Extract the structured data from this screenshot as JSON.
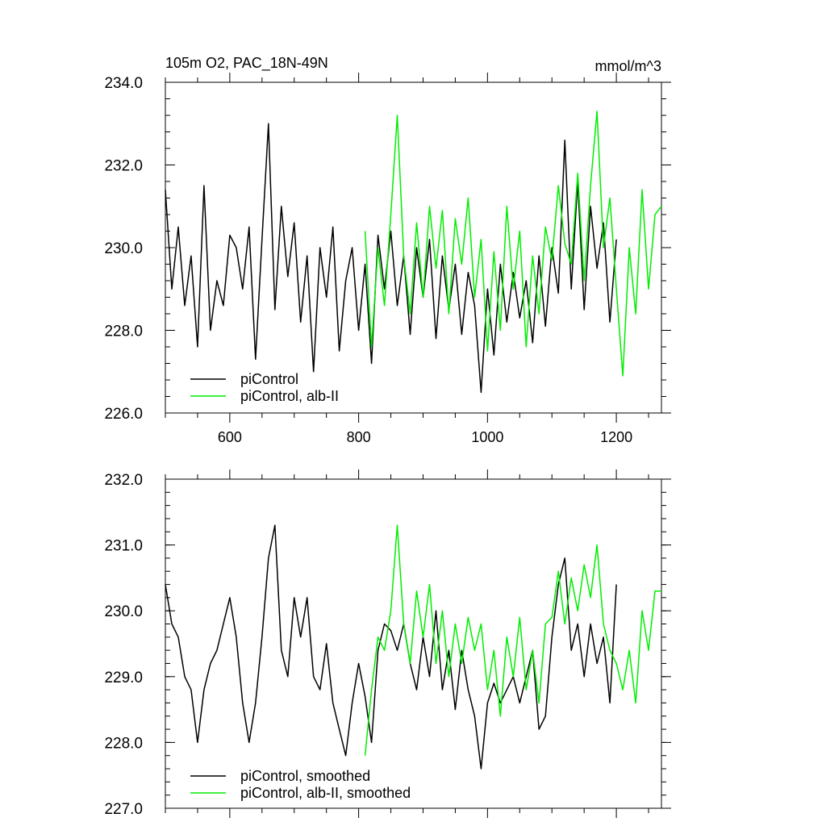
{
  "chart_data": [
    {
      "type": "line",
      "title_left": "105m O2, PAC_18N-49N",
      "title_right": "mmol/m^3",
      "xlim": [
        500,
        1270
      ],
      "ylim": [
        226.0,
        234.0
      ],
      "x_ticks": [
        600,
        800,
        1000,
        1200
      ],
      "x_tick_labels": [
        "600",
        "800",
        "1000",
        "1200"
      ],
      "y_ticks": [
        226.0,
        228.0,
        230.0,
        232.0,
        234.0
      ],
      "y_tick_labels": [
        "226.0",
        "228.0",
        "230.0",
        "232.0",
        "234.0"
      ],
      "legend_position": "bottom-left",
      "series": [
        {
          "name": "piControl",
          "color": "#000000",
          "x": [
            500,
            510,
            520,
            530,
            540,
            550,
            560,
            570,
            580,
            590,
            600,
            610,
            620,
            630,
            640,
            650,
            660,
            670,
            680,
            690,
            700,
            710,
            720,
            730,
            740,
            750,
            760,
            770,
            780,
            790,
            800,
            810,
            820,
            830,
            840,
            850,
            860,
            870,
            880,
            890,
            900,
            910,
            920,
            930,
            940,
            950,
            960,
            970,
            980,
            990,
            1000,
            1010,
            1020,
            1030,
            1040,
            1050,
            1060,
            1070,
            1080,
            1090,
            1100,
            1110,
            1120,
            1130,
            1140,
            1150,
            1160,
            1170,
            1180,
            1190,
            1200
          ],
          "values": [
            231.4,
            229.0,
            230.5,
            228.6,
            229.8,
            227.6,
            231.5,
            228.0,
            229.2,
            228.6,
            230.3,
            230.0,
            229.0,
            230.5,
            227.3,
            230.2,
            233.0,
            228.5,
            231.0,
            229.3,
            230.6,
            228.2,
            229.8,
            227.0,
            230.0,
            228.8,
            230.5,
            227.5,
            229.2,
            230.0,
            228.0,
            229.6,
            227.2,
            230.3,
            229.0,
            230.4,
            228.6,
            229.8,
            227.9,
            230.0,
            228.8,
            230.2,
            227.8,
            229.8,
            228.5,
            229.6,
            227.9,
            229.4,
            228.6,
            226.5,
            229.0,
            227.4,
            229.6,
            228.2,
            229.4,
            228.3,
            229.2,
            227.7,
            229.8,
            228.1,
            230.0,
            228.9,
            232.6,
            229.0,
            231.6,
            228.5,
            231.0,
            229.5,
            230.6,
            228.2,
            230.2
          ]
        },
        {
          "name": "piControl, alb-II",
          "color": "#00ee00",
          "x": [
            810,
            820,
            830,
            840,
            850,
            860,
            870,
            880,
            890,
            900,
            910,
            920,
            930,
            940,
            950,
            960,
            970,
            980,
            990,
            1000,
            1010,
            1020,
            1030,
            1040,
            1050,
            1060,
            1070,
            1080,
            1090,
            1100,
            1110,
            1120,
            1130,
            1140,
            1150,
            1160,
            1170,
            1180,
            1190,
            1200,
            1210,
            1220,
            1230,
            1240,
            1250,
            1260,
            1270
          ],
          "values": [
            230.4,
            227.6,
            230.0,
            228.6,
            230.8,
            233.2,
            229.8,
            228.4,
            230.6,
            228.8,
            231.0,
            229.5,
            230.9,
            228.4,
            230.7,
            229.6,
            231.2,
            228.8,
            230.2,
            227.5,
            229.9,
            228.0,
            231.0,
            229.0,
            230.4,
            227.6,
            229.8,
            228.4,
            230.5,
            229.7,
            231.5,
            230.1,
            229.6,
            231.8,
            229.2,
            231.5,
            233.3,
            230.0,
            231.2,
            229.0,
            226.9,
            230.0,
            228.4,
            231.4,
            229.0,
            230.8,
            231.0
          ]
        }
      ]
    },
    {
      "type": "line",
      "xlim": [
        500,
        1270
      ],
      "ylim": [
        227.0,
        232.0
      ],
      "x_ticks": [
        600,
        800,
        1000,
        1200
      ],
      "y_ticks": [
        227.0,
        228.0,
        229.0,
        230.0,
        231.0,
        232.0
      ],
      "y_tick_labels": [
        "227.0",
        "228.0",
        "229.0",
        "230.0",
        "231.0",
        "232.0"
      ],
      "legend_position": "bottom-left",
      "series": [
        {
          "name": "piControl, smoothed",
          "color": "#000000",
          "x": [
            500,
            510,
            520,
            530,
            540,
            550,
            560,
            570,
            580,
            590,
            600,
            610,
            620,
            630,
            640,
            650,
            660,
            670,
            680,
            690,
            700,
            710,
            720,
            730,
            740,
            750,
            760,
            770,
            780,
            790,
            800,
            810,
            820,
            830,
            840,
            850,
            860,
            870,
            880,
            890,
            900,
            910,
            920,
            930,
            940,
            950,
            960,
            970,
            980,
            990,
            1000,
            1010,
            1020,
            1030,
            1040,
            1050,
            1060,
            1070,
            1080,
            1090,
            1100,
            1110,
            1120,
            1130,
            1140,
            1150,
            1160,
            1170,
            1180,
            1190,
            1200
          ],
          "values": [
            230.4,
            229.8,
            229.6,
            229.0,
            228.8,
            228.0,
            228.8,
            229.2,
            229.4,
            229.8,
            230.2,
            229.6,
            228.6,
            228.0,
            228.6,
            229.6,
            230.8,
            231.3,
            229.4,
            229.0,
            230.2,
            229.6,
            230.2,
            229.0,
            228.8,
            229.5,
            228.6,
            228.2,
            227.8,
            228.6,
            229.2,
            228.7,
            228.0,
            229.4,
            229.8,
            229.7,
            229.4,
            229.8,
            229.2,
            228.8,
            229.6,
            229.0,
            230.0,
            228.8,
            229.4,
            228.5,
            229.4,
            228.8,
            228.4,
            227.6,
            228.6,
            228.9,
            228.6,
            228.8,
            229.0,
            228.6,
            229.0,
            229.4,
            228.2,
            228.4,
            229.6,
            230.4,
            230.8,
            229.4,
            229.8,
            229.0,
            229.8,
            229.2,
            229.6,
            228.6,
            230.4
          ]
        },
        {
          "name": "piControl, alb-II, smoothed",
          "color": "#00ee00",
          "x": [
            810,
            820,
            830,
            840,
            850,
            860,
            870,
            880,
            890,
            900,
            910,
            920,
            930,
            940,
            950,
            960,
            970,
            980,
            990,
            1000,
            1010,
            1020,
            1030,
            1040,
            1050,
            1060,
            1070,
            1080,
            1090,
            1100,
            1110,
            1120,
            1130,
            1140,
            1150,
            1160,
            1170,
            1180,
            1190,
            1200,
            1210,
            1220,
            1230,
            1240,
            1250,
            1260,
            1270
          ],
          "values": [
            227.8,
            228.8,
            229.6,
            229.4,
            230.0,
            231.3,
            229.8,
            229.2,
            230.3,
            229.6,
            230.4,
            229.2,
            230.0,
            229.0,
            229.8,
            229.2,
            229.9,
            229.4,
            229.8,
            228.8,
            229.4,
            228.4,
            229.6,
            229.0,
            229.9,
            228.8,
            229.4,
            228.6,
            229.8,
            229.9,
            230.6,
            229.8,
            230.5,
            230.0,
            230.7,
            230.2,
            231.0,
            229.8,
            229.4,
            229.2,
            228.8,
            229.4,
            228.6,
            230.0,
            229.4,
            230.3,
            230.3
          ]
        }
      ]
    }
  ]
}
